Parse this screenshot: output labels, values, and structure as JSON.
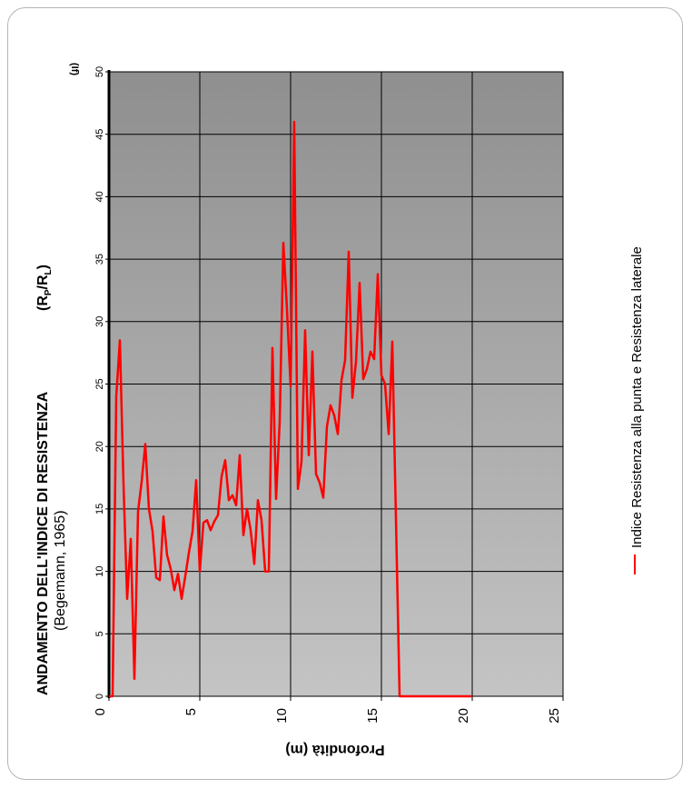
{
  "chart_data": {
    "type": "line",
    "title": "ANDAMENTO DELL'INDICE DI RESISTENZA",
    "title_ratio": {
      "base": "(R",
      "sub1": "P",
      "mid": "/R",
      "sub2": "L",
      "end": ")"
    },
    "subtitle": "(Begemann, 1965)",
    "xlabel": "Profondità (m)",
    "ylabel": "(If)",
    "xlim": [
      0,
      25
    ],
    "ylim": [
      0,
      50
    ],
    "xticks": [
      "0",
      "5",
      "10",
      "15",
      "20",
      "25"
    ],
    "yticks": [
      "0",
      "5",
      "10",
      "15",
      "20",
      "25",
      "30",
      "35",
      "40",
      "45",
      "50"
    ],
    "grid": true,
    "legend_position": "right",
    "series": [
      {
        "name": "Indice Resistenza alla punta e Resistenza laterale",
        "color": "#ff0000",
        "points": [
          [
            0.0,
            0.0
          ],
          [
            0.2,
            0.0
          ],
          [
            0.4,
            24.0
          ],
          [
            0.6,
            28.5
          ],
          [
            0.8,
            17.0
          ],
          [
            1.0,
            7.8
          ],
          [
            1.2,
            12.6
          ],
          [
            1.4,
            1.4
          ],
          [
            1.6,
            14.8
          ],
          [
            1.8,
            17.2
          ],
          [
            2.0,
            20.2
          ],
          [
            2.2,
            15.0
          ],
          [
            2.4,
            13.2
          ],
          [
            2.6,
            9.5
          ],
          [
            2.8,
            9.3
          ],
          [
            3.0,
            14.4
          ],
          [
            3.2,
            11.3
          ],
          [
            3.4,
            10.2
          ],
          [
            3.6,
            8.5
          ],
          [
            3.8,
            9.8
          ],
          [
            4.0,
            7.8
          ],
          [
            4.2,
            9.6
          ],
          [
            4.4,
            11.5
          ],
          [
            4.6,
            13.2
          ],
          [
            4.8,
            17.3
          ],
          [
            5.0,
            10.0
          ],
          [
            5.2,
            13.9
          ],
          [
            5.4,
            14.1
          ],
          [
            5.6,
            13.3
          ],
          [
            5.8,
            14.0
          ],
          [
            6.0,
            14.5
          ],
          [
            6.2,
            17.6
          ],
          [
            6.4,
            18.9
          ],
          [
            6.6,
            15.7
          ],
          [
            6.8,
            16.1
          ],
          [
            7.0,
            15.3
          ],
          [
            7.2,
            19.3
          ],
          [
            7.4,
            12.9
          ],
          [
            7.6,
            15.0
          ],
          [
            7.8,
            13.3
          ],
          [
            8.0,
            10.6
          ],
          [
            8.2,
            15.7
          ],
          [
            8.4,
            14.1
          ],
          [
            8.6,
            10.0
          ],
          [
            8.8,
            10.0
          ],
          [
            9.0,
            27.9
          ],
          [
            9.2,
            15.8
          ],
          [
            9.4,
            22.0
          ],
          [
            9.6,
            36.3
          ],
          [
            9.8,
            31.0
          ],
          [
            10.0,
            24.8
          ],
          [
            10.2,
            46.0
          ],
          [
            10.4,
            16.6
          ],
          [
            10.6,
            18.8
          ],
          [
            10.8,
            29.3
          ],
          [
            11.0,
            19.3
          ],
          [
            11.2,
            27.6
          ],
          [
            11.4,
            17.8
          ],
          [
            11.6,
            17.1
          ],
          [
            11.8,
            15.9
          ],
          [
            12.0,
            21.6
          ],
          [
            12.2,
            23.3
          ],
          [
            12.4,
            22.5
          ],
          [
            12.6,
            21.0
          ],
          [
            12.8,
            25.3
          ],
          [
            13.0,
            26.9
          ],
          [
            13.2,
            35.6
          ],
          [
            13.4,
            23.9
          ],
          [
            13.6,
            26.8
          ],
          [
            13.8,
            33.1
          ],
          [
            14.0,
            25.4
          ],
          [
            14.2,
            26.2
          ],
          [
            14.4,
            27.6
          ],
          [
            14.6,
            27.0
          ],
          [
            14.8,
            33.8
          ],
          [
            15.0,
            25.7
          ],
          [
            15.2,
            25.0
          ],
          [
            15.4,
            21.0
          ],
          [
            15.6,
            28.4
          ],
          [
            16.0,
            0.0
          ],
          [
            20.0,
            0.0
          ]
        ]
      }
    ]
  }
}
